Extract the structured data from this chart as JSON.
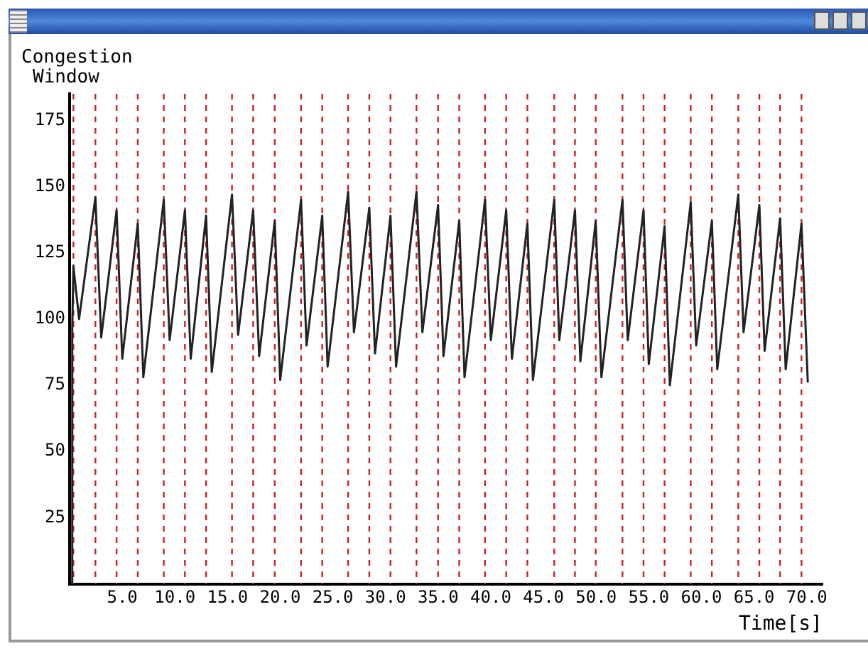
{
  "chart_data": {
    "type": "line",
    "ylabel": "Congestion Window",
    "xlabel": "Time[s]",
    "x": [
      0.2,
      0.25,
      0.36,
      0.9,
      2.45,
      3.0,
      4.46,
      5.0,
      6.47,
      7.0,
      8.94,
      9.5,
      10.95,
      11.5,
      12.96,
      13.5,
      15.42,
      16.0,
      17.43,
      18.0,
      19.48,
      20.0,
      21.98,
      22.5,
      23.99,
      24.5,
      26.45,
      27.0,
      28.46,
      29.0,
      30.47,
      31.0,
      32.94,
      33.5,
      34.99,
      35.5,
      37.0,
      37.5,
      39.45,
      40.0,
      41.46,
      42.0,
      43.47,
      44.0,
      46.02,
      46.5,
      47.99,
      48.5,
      49.96,
      50.5,
      52.5,
      53.0,
      54.5,
      55.0,
      56.5,
      57.0,
      58.98,
      59.5,
      60.99,
      61.5,
      63.5,
      64.0,
      65.5,
      66.0,
      67.47,
      68.0,
      69.5,
      70.1
    ],
    "series": [
      {
        "color": "#222222",
        "values": [
          0,
          96,
          120,
          100,
          146,
          93,
          141,
          85,
          136,
          78,
          145,
          92,
          141,
          85,
          139,
          80,
          147,
          94,
          141,
          86,
          137,
          77,
          145,
          90,
          139,
          82,
          148,
          95,
          142,
          87,
          139,
          82,
          148,
          95,
          143,
          86,
          137,
          78,
          145,
          92,
          141,
          85,
          136,
          77,
          145,
          92,
          141,
          84,
          137,
          78,
          145,
          92,
          141,
          83,
          135,
          75,
          144,
          90,
          137,
          81,
          147,
          95,
          143,
          88,
          138,
          81,
          136,
          76
        ]
      }
    ],
    "xlim": [
      0,
      71.5
    ],
    "ylim": [
      0,
      185
    ],
    "xticks": [
      {
        "value": 5,
        "label": "5.0"
      },
      {
        "value": 10,
        "label": "10.0"
      },
      {
        "value": 15,
        "label": "15.0"
      },
      {
        "value": 20,
        "label": "20.0"
      },
      {
        "value": 25,
        "label": "25.0"
      },
      {
        "value": 30,
        "label": "30.0"
      },
      {
        "value": 35,
        "label": "35.0"
      },
      {
        "value": 40,
        "label": "40.0"
      },
      {
        "value": 45,
        "label": "45.0"
      },
      {
        "value": 50,
        "label": "50.0"
      },
      {
        "value": 55,
        "label": "55.0"
      },
      {
        "value": 60,
        "label": "60.0"
      },
      {
        "value": 65,
        "label": "65.0"
      },
      {
        "value": 70,
        "label": "70.0"
      }
    ],
    "yticks": [
      25,
      50,
      75,
      100,
      125,
      150,
      175
    ],
    "grid": false,
    "legend": false,
    "marker": "none",
    "line_style": "solid",
    "ref_lines": [
      {
        "axis": "x",
        "value": 0.36,
        "color": "#cc2222",
        "line_style": "dashed"
      },
      {
        "axis": "x",
        "value": 2.45,
        "color": "#cc2222",
        "line_style": "dashed"
      },
      {
        "axis": "x",
        "value": 4.46,
        "color": "#cc2222",
        "line_style": "dashed"
      },
      {
        "axis": "x",
        "value": 6.47,
        "color": "#cc2222",
        "line_style": "dashed"
      },
      {
        "axis": "x",
        "value": 8.94,
        "color": "#cc2222",
        "line_style": "dashed"
      },
      {
        "axis": "x",
        "value": 10.95,
        "color": "#cc2222",
        "line_style": "dashed"
      },
      {
        "axis": "x",
        "value": 12.96,
        "color": "#cc2222",
        "line_style": "dashed"
      },
      {
        "axis": "x",
        "value": 15.42,
        "color": "#cc2222",
        "line_style": "dashed"
      },
      {
        "axis": "x",
        "value": 17.43,
        "color": "#cc2222",
        "line_style": "dashed"
      },
      {
        "axis": "x",
        "value": 19.48,
        "color": "#cc2222",
        "line_style": "dashed"
      },
      {
        "axis": "x",
        "value": 21.98,
        "color": "#cc2222",
        "line_style": "dashed"
      },
      {
        "axis": "x",
        "value": 23.99,
        "color": "#cc2222",
        "line_style": "dashed"
      },
      {
        "axis": "x",
        "value": 26.45,
        "color": "#cc2222",
        "line_style": "dashed"
      },
      {
        "axis": "x",
        "value": 28.46,
        "color": "#cc2222",
        "line_style": "dashed"
      },
      {
        "axis": "x",
        "value": 30.47,
        "color": "#cc2222",
        "line_style": "dashed"
      },
      {
        "axis": "x",
        "value": 32.94,
        "color": "#cc2222",
        "line_style": "dashed"
      },
      {
        "axis": "x",
        "value": 34.99,
        "color": "#cc2222",
        "line_style": "dashed"
      },
      {
        "axis": "x",
        "value": 37.0,
        "color": "#cc2222",
        "line_style": "dashed"
      },
      {
        "axis": "x",
        "value": 39.45,
        "color": "#cc2222",
        "line_style": "dashed"
      },
      {
        "axis": "x",
        "value": 41.46,
        "color": "#cc2222",
        "line_style": "dashed"
      },
      {
        "axis": "x",
        "value": 43.47,
        "color": "#cc2222",
        "line_style": "dashed"
      },
      {
        "axis": "x",
        "value": 46.02,
        "color": "#cc2222",
        "line_style": "dashed"
      },
      {
        "axis": "x",
        "value": 47.99,
        "color": "#cc2222",
        "line_style": "dashed"
      },
      {
        "axis": "x",
        "value": 49.96,
        "color": "#cc2222",
        "line_style": "dashed"
      },
      {
        "axis": "x",
        "value": 52.5,
        "color": "#cc2222",
        "line_style": "dashed"
      },
      {
        "axis": "x",
        "value": 54.5,
        "color": "#cc2222",
        "line_style": "dashed"
      },
      {
        "axis": "x",
        "value": 56.5,
        "color": "#cc2222",
        "line_style": "dashed"
      },
      {
        "axis": "x",
        "value": 58.98,
        "color": "#cc2222",
        "line_style": "dashed"
      },
      {
        "axis": "x",
        "value": 60.99,
        "color": "#cc2222",
        "line_style": "dashed"
      },
      {
        "axis": "x",
        "value": 63.5,
        "color": "#cc2222",
        "line_style": "dashed"
      },
      {
        "axis": "x",
        "value": 65.5,
        "color": "#cc2222",
        "line_style": "dashed"
      },
      {
        "axis": "x",
        "value": 67.47,
        "color": "#cc2222",
        "line_style": "dashed"
      },
      {
        "axis": "x",
        "value": 69.5,
        "color": "#cc2222",
        "line_style": "dashed"
      }
    ]
  }
}
